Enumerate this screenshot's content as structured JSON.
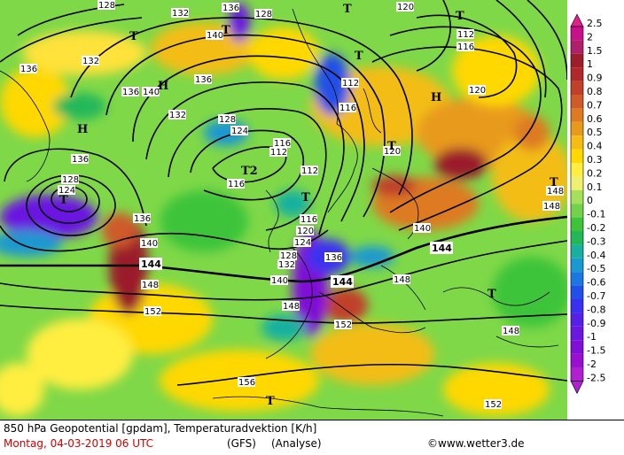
{
  "footer": {
    "line1": "850 hPa Geopotential [gpdam], Temperaturadvektion [K/h]",
    "date": "Montag, 04-03-2019  06 UTC",
    "model": "(GFS)",
    "mode": "(Analyse)",
    "copyright": "©www.wetter3.de"
  },
  "legend": {
    "levels": [
      "2.5",
      "2",
      "1.5",
      "1",
      "0.9",
      "0.8",
      "0.7",
      "0.6",
      "0.5",
      "0.4",
      "0.3",
      "0.2",
      "0.1",
      "0",
      "-0.1",
      "-0.2",
      "-0.3",
      "-0.4",
      "-0.5",
      "-0.6",
      "-0.7",
      "-0.8",
      "-0.9",
      "-1",
      "-1.5",
      "-2",
      "-2.5"
    ],
    "colors": [
      "#e0218a",
      "#c8108a",
      "#b0206a",
      "#9a1f2a",
      "#b0282a",
      "#c0402a",
      "#cf5a2a",
      "#dd7a22",
      "#e89a1a",
      "#f3bd15",
      "#ffd800",
      "#ffee40",
      "#f0f070",
      "#a6e05a",
      "#73d24a",
      "#3ec43a",
      "#22b85a",
      "#19b0a0",
      "#1a98d0",
      "#1a78e0",
      "#2050e8",
      "#3a30f0",
      "#5520e8",
      "#6a18e0",
      "#8010d8",
      "#9a10d0",
      "#b020d0"
    ]
  },
  "map": {
    "contour_labels": [
      "128",
      "132",
      "136",
      "140",
      "144",
      "148",
      "152",
      "156",
      "112",
      "116",
      "120",
      "124"
    ],
    "pressure_centers": [
      {
        "label": "T"
      },
      {
        "label": "T"
      },
      {
        "label": "T"
      },
      {
        "label": "T"
      },
      {
        "label": "T"
      },
      {
        "label": "T"
      },
      {
        "label": "T2"
      },
      {
        "label": "T"
      },
      {
        "label": "T"
      },
      {
        "label": "T"
      },
      {
        "label": "T"
      },
      {
        "label": "T"
      },
      {
        "label": "H"
      },
      {
        "label": "H"
      },
      {
        "label": "H"
      }
    ]
  }
}
